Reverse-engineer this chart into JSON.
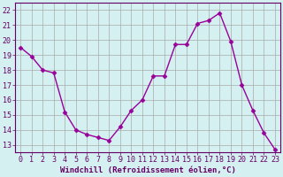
{
  "x": [
    0,
    1,
    2,
    3,
    4,
    5,
    6,
    7,
    8,
    9,
    10,
    11,
    12,
    13,
    14,
    15,
    16,
    17,
    18,
    19,
    20,
    21,
    22,
    23
  ],
  "y": [
    19.5,
    18.9,
    18.0,
    17.8,
    15.2,
    14.0,
    13.7,
    13.5,
    13.3,
    14.2,
    15.3,
    16.0,
    17.6,
    17.6,
    19.7,
    19.7,
    21.1,
    21.3,
    21.8,
    19.9,
    17.0,
    15.3,
    13.8,
    12.7
  ],
  "line_color": "#990099",
  "marker": "D",
  "marker_size": 2.5,
  "bg_color": "#d4f0f0",
  "grid_color": "#aaaaaa",
  "ylabel_ticks": [
    13,
    14,
    15,
    16,
    17,
    18,
    19,
    20,
    21,
    22
  ],
  "ylim": [
    12.5,
    22.5
  ],
  "xlim": [
    -0.5,
    23.5
  ],
  "xlabel": "Windchill (Refroidissement éolien,°C)",
  "xticks": [
    0,
    1,
    2,
    3,
    4,
    5,
    6,
    7,
    8,
    9,
    10,
    11,
    12,
    13,
    14,
    15,
    16,
    17,
    18,
    19,
    20,
    21,
    22,
    23
  ],
  "xlabel_fontsize": 6.5,
  "tick_fontsize": 6,
  "axis_color": "#660066",
  "grid_linewidth": 0.5
}
